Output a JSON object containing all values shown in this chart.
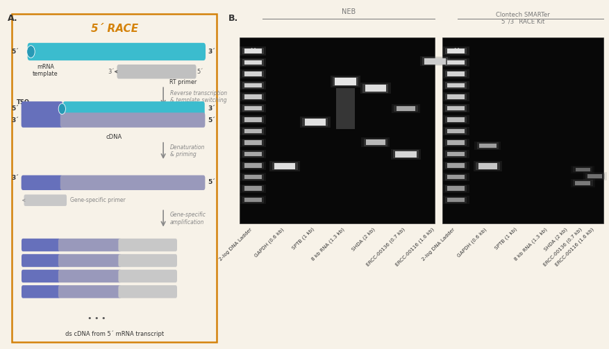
{
  "panel_a_title": "5´ RACE",
  "panel_a_title_color": "#d4820a",
  "bg_color": "#f7f2e8",
  "border_color": "#d4820a",
  "neb_label": "NEB",
  "clontech_label": "Clontech SMARTer\n5´/3´ RACE Kit",
  "neb_lanes": [
    "2-log DNA Ladder",
    "GAPDH (0.6 kb)",
    "SPTB (1 kb)",
    "8 kb RNA (1.3 kb)",
    "SHDA (2 kb)",
    "ERCC-00136 (0.7 kb)",
    "ERCC-00116 (1.6 kb)"
  ],
  "clontech_lanes": [
    "2-log DNA Ladder",
    "GAPDH (0.6 kb)",
    "SPTB (1 kb)",
    "8 kb RNA (1.3 kb)",
    "SHDA (2 kb)",
    "ERCC-00136 (0.7 kb)",
    "ERCC-00116 (1.6 kb)"
  ],
  "gel_bg": "#080808",
  "mrna_color": "#3bbcce",
  "tso_color": "#6670bb",
  "cdna_color": "#9999bb",
  "primer_color": "#c0c0c0",
  "arrow_color": "#888888",
  "text_color": "#555555",
  "step_text_color": "#888888"
}
